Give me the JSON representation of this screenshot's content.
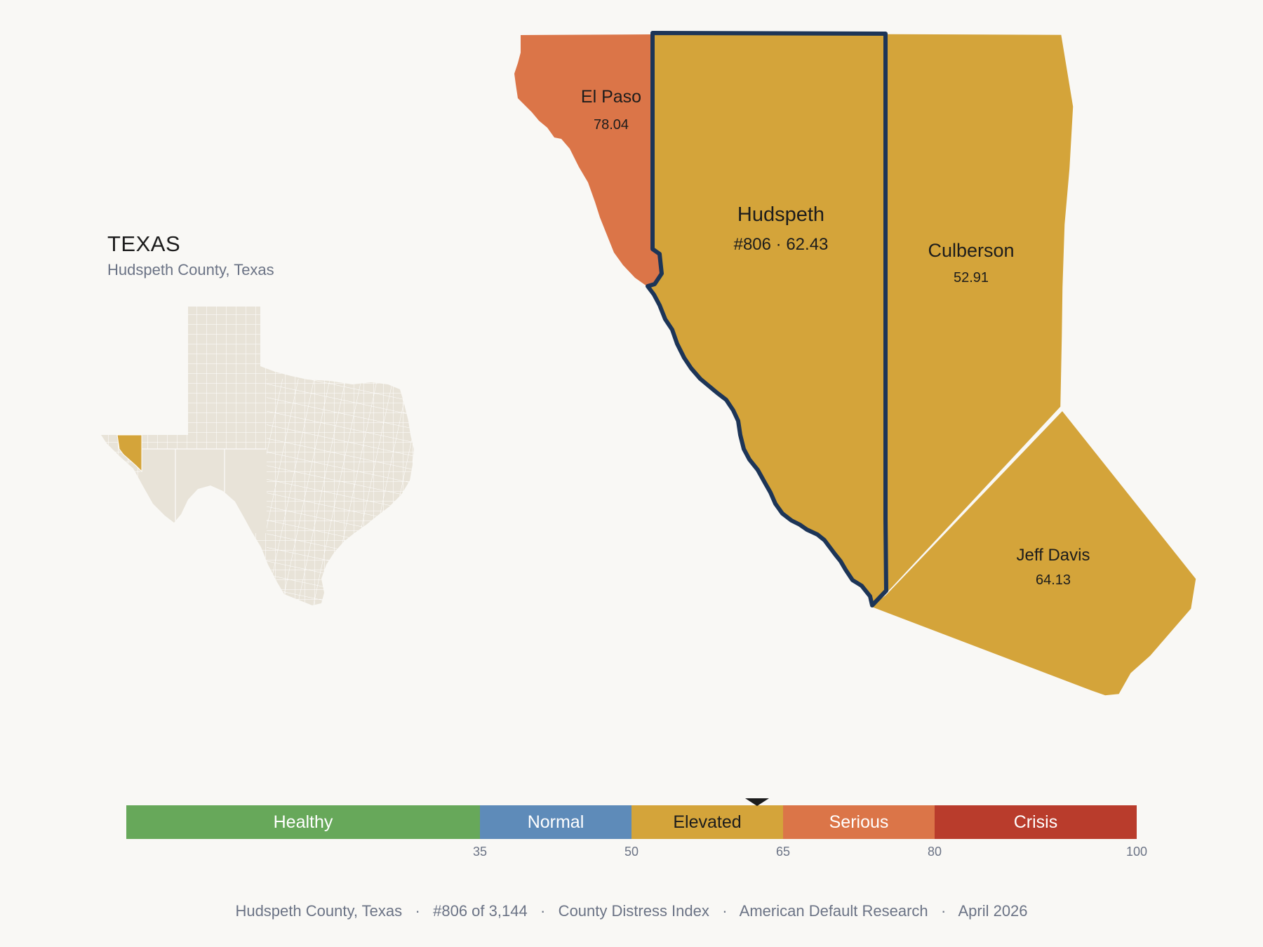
{
  "inset": {
    "state_label": "TEXAS",
    "subtitle": "Hudspeth County, Texas",
    "highlight_color": "#d4a43a",
    "base_color": "#e8e3d8"
  },
  "counties": [
    {
      "id": "el-paso",
      "name": "El Paso",
      "value": "78.04",
      "fill": "#db7548"
    },
    {
      "id": "hudspeth",
      "name": "Hudspeth",
      "rank_value": "#806 · 62.43",
      "fill": "#d4a43a",
      "highlight": true
    },
    {
      "id": "culberson",
      "name": "Culberson",
      "value": "52.91",
      "fill": "#d4a43a"
    },
    {
      "id": "jeff-davis",
      "name": "Jeff Davis",
      "value": "64.13",
      "fill": "#d4a43a"
    }
  ],
  "scale": {
    "min": 0,
    "max": 100,
    "marker_value": 62.43,
    "bands": [
      {
        "label": "Healthy",
        "from": 0,
        "to": 35,
        "color": "#67a85a"
      },
      {
        "label": "Normal",
        "from": 35,
        "to": 50,
        "color": "#5e8bb9"
      },
      {
        "label": "Elevated",
        "from": 50,
        "to": 65,
        "color": "#d4a43a"
      },
      {
        "label": "Serious",
        "from": 65,
        "to": 80,
        "color": "#db7548"
      },
      {
        "label": "Crisis",
        "from": 80,
        "to": 100,
        "color": "#b93c2c"
      }
    ],
    "ticks": [
      "35",
      "50",
      "65",
      "80",
      "100"
    ]
  },
  "footer": {
    "text": "Hudspeth County, Texas   ·   #806 of 3,144   ·   County Distress Index   ·   American Default Research   ·   April 2026"
  }
}
